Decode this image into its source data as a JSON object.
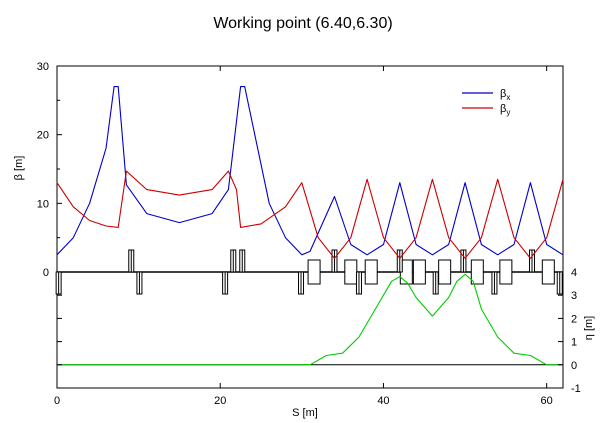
{
  "chart_data": {
    "type": "line",
    "title": "Working point (6.40,6.30)",
    "xlabel": "S [m]",
    "ylabel_left": "β [m]",
    "ylabel_right": "η [m]",
    "xlim": [
      0,
      62
    ],
    "xticks": [
      0,
      20,
      40,
      60
    ],
    "beta_ylim": [
      0,
      30
    ],
    "beta_yticks": [
      0,
      10,
      20,
      30
    ],
    "eta_ylim": [
      -1,
      4
    ],
    "eta_yticks": [
      -1,
      0,
      1,
      2,
      3,
      4
    ],
    "grid": false,
    "legend_position": "top-right",
    "series": [
      {
        "name": "βx",
        "legend_main": "β",
        "legend_sub": "x",
        "color": "#0000cc",
        "axis": "beta",
        "x": [
          0,
          2,
          4,
          6,
          7,
          7.5,
          8.5,
          11,
          15,
          19,
          21,
          22.5,
          23,
          26,
          28,
          30,
          31,
          34,
          36,
          38,
          40,
          42,
          44,
          46,
          48,
          50,
          52,
          54,
          56,
          58,
          60,
          62
        ],
        "y": [
          2.5,
          5,
          10,
          18,
          27,
          27,
          12.7,
          8.5,
          7.2,
          8.5,
          12,
          27,
          27,
          10,
          5,
          2.5,
          3,
          11,
          4,
          2.5,
          4,
          13,
          4,
          2.5,
          4,
          13,
          4,
          2.5,
          4,
          13,
          4,
          2.5
        ]
      },
      {
        "name": "βy",
        "legend_main": "β",
        "legend_sub": "y",
        "color": "#cc0000",
        "axis": "beta",
        "x": [
          0,
          2,
          4,
          6,
          7.5,
          8.5,
          11,
          15,
          19,
          21,
          22,
          22.5,
          25,
          28,
          30,
          32,
          34,
          36,
          38,
          40,
          42,
          44,
          46,
          48,
          50,
          52,
          54,
          56,
          58,
          60,
          62
        ],
        "y": [
          13,
          9.5,
          7.5,
          6.7,
          6.5,
          14.7,
          12,
          11.2,
          12,
          14.7,
          12,
          6.5,
          7,
          9.5,
          13,
          5,
          2,
          5,
          13.5,
          5,
          2,
          5,
          13.5,
          5,
          2,
          5,
          13.5,
          5,
          2,
          5,
          13.5
        ]
      },
      {
        "name": "η",
        "color": "#00cc00",
        "axis": "eta",
        "x": [
          0,
          31,
          33,
          35,
          37,
          39,
          41,
          42,
          43,
          44,
          46,
          48,
          49,
          50,
          51,
          52,
          54,
          56,
          58,
          60,
          62
        ],
        "y": [
          0,
          0,
          0.4,
          0.5,
          1.2,
          2.4,
          3.6,
          3.8,
          3.5,
          2.9,
          2.1,
          2.9,
          3.6,
          3.9,
          3.6,
          2.4,
          1.2,
          0.5,
          0.4,
          0,
          0
        ]
      }
    ],
    "lattice": {
      "dipoles": [
        31.5,
        36,
        38.5,
        42.8,
        44.4,
        47.5,
        51.5,
        55,
        60.2
      ],
      "quads_focusing": [
        9.1,
        21.6,
        22.7,
        34.0,
        42.0,
        49.8,
        58.2
      ],
      "quads_defocusing": [
        0.2,
        10.1,
        20.6,
        29.9,
        37.0,
        46.4,
        53.6,
        61.6
      ]
    }
  }
}
